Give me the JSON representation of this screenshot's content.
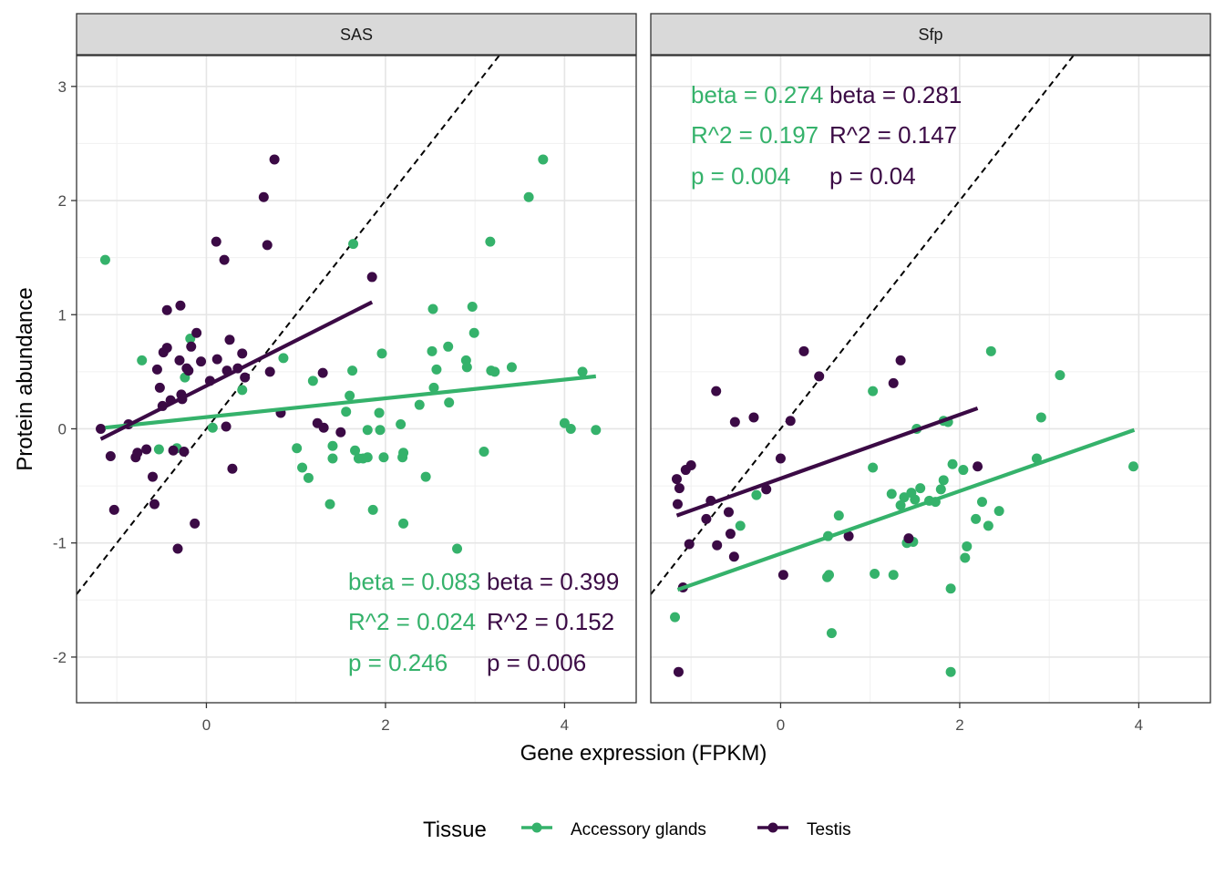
{
  "chart_data": {
    "type": "scatter",
    "xlabel": "Gene expression (FPKM)",
    "ylabel": "Protein abundance",
    "xlim": [
      -1.45,
      4.8
    ],
    "ylim": [
      -2.4,
      3.27
    ],
    "x_ticks": [
      0,
      2,
      4
    ],
    "y_ticks": [
      -2,
      -1,
      0,
      1,
      2,
      3
    ],
    "x_tick_labels": [
      "0",
      "2",
      "4"
    ],
    "y_tick_labels": [
      "-2",
      "-1",
      "0",
      "1",
      "2",
      "3"
    ],
    "grid": true,
    "identity_line": true,
    "legend": {
      "title": "Tissue",
      "position": "bottom",
      "entries": [
        {
          "label": "Accessory glands",
          "color": "#35b26b"
        },
        {
          "label": "Testis",
          "color": "#3b0a45"
        }
      ]
    },
    "colors": {
      "Accessory glands": "#35b26b",
      "Testis": "#3b0a45"
    },
    "panels": [
      {
        "title": "SAS",
        "series": [
          {
            "name": "Accessory glands",
            "color": "#35b26b",
            "points": [
              [
                -1.13,
                1.48
              ],
              [
                -0.72,
                0.6
              ],
              [
                -0.53,
                -0.18
              ],
              [
                -0.33,
                -0.17
              ],
              [
                -0.24,
                0.45
              ],
              [
                -0.18,
                0.79
              ],
              [
                0.07,
                0.01
              ],
              [
                0.4,
                0.34
              ],
              [
                0.86,
                0.62
              ],
              [
                1.01,
                -0.17
              ],
              [
                1.07,
                -0.34
              ],
              [
                1.14,
                -0.43
              ],
              [
                1.19,
                0.42
              ],
              [
                1.38,
                -0.66
              ],
              [
                1.41,
                -0.15
              ],
              [
                1.41,
                -0.26
              ],
              [
                1.56,
                0.15
              ],
              [
                1.6,
                0.29
              ],
              [
                1.63,
                0.51
              ],
              [
                1.64,
                1.62
              ],
              [
                1.66,
                -0.19
              ],
              [
                1.7,
                -0.26
              ],
              [
                1.75,
                -0.26
              ],
              [
                1.8,
                -0.25
              ],
              [
                1.8,
                -0.01
              ],
              [
                1.86,
                -0.71
              ],
              [
                1.93,
                0.14
              ],
              [
                1.94,
                -0.01
              ],
              [
                1.96,
                0.66
              ],
              [
                1.98,
                -0.25
              ],
              [
                2.17,
                0.04
              ],
              [
                2.19,
                -0.25
              ],
              [
                2.2,
                -0.83
              ],
              [
                2.2,
                -0.21
              ],
              [
                2.38,
                0.21
              ],
              [
                2.45,
                -0.42
              ],
              [
                2.52,
                0.68
              ],
              [
                2.53,
                1.05
              ],
              [
                2.54,
                0.36
              ],
              [
                2.57,
                0.52
              ],
              [
                2.7,
                0.72
              ],
              [
                2.71,
                0.23
              ],
              [
                2.8,
                -1.05
              ],
              [
                2.9,
                0.6
              ],
              [
                2.91,
                0.54
              ],
              [
                2.97,
                1.07
              ],
              [
                2.99,
                0.84
              ],
              [
                3.1,
                -0.2
              ],
              [
                3.17,
                1.64
              ],
              [
                3.18,
                0.51
              ],
              [
                3.22,
                0.5
              ],
              [
                3.41,
                0.54
              ],
              [
                3.6,
                2.03
              ],
              [
                3.76,
                2.36
              ],
              [
                4.2,
                0.5
              ],
              [
                4.0,
                0.05
              ],
              [
                4.07,
                0.0
              ],
              [
                4.35,
                -0.01
              ]
            ],
            "fit": {
              "x": [
                -1.13,
                4.35
              ],
              "y": [
                0.01,
                0.46
              ]
            }
          },
          {
            "name": "Testis",
            "color": "#3b0a45",
            "points": [
              [
                -1.18,
                0.0
              ],
              [
                -1.07,
                -0.24
              ],
              [
                -1.03,
                -0.71
              ],
              [
                -0.87,
                0.04
              ],
              [
                -0.79,
                -0.25
              ],
              [
                -0.77,
                -0.21
              ],
              [
                -0.67,
                -0.18
              ],
              [
                -0.6,
                -0.42
              ],
              [
                -0.58,
                -0.66
              ],
              [
                -0.55,
                0.52
              ],
              [
                -0.52,
                0.36
              ],
              [
                -0.49,
                0.2
              ],
              [
                -0.48,
                0.67
              ],
              [
                -0.44,
                0.71
              ],
              [
                -0.44,
                1.04
              ],
              [
                -0.4,
                0.25
              ],
              [
                -0.37,
                -0.19
              ],
              [
                -0.32,
                -1.05
              ],
              [
                -0.3,
                0.6
              ],
              [
                -0.29,
                1.08
              ],
              [
                -0.28,
                0.3
              ],
              [
                -0.27,
                0.26
              ],
              [
                -0.25,
                -0.2
              ],
              [
                -0.22,
                0.53
              ],
              [
                -0.2,
                0.51
              ],
              [
                -0.17,
                0.72
              ],
              [
                -0.13,
                -0.83
              ],
              [
                -0.11,
                0.84
              ],
              [
                -0.06,
                0.59
              ],
              [
                0.04,
                0.42
              ],
              [
                0.11,
                1.64
              ],
              [
                0.12,
                0.61
              ],
              [
                0.2,
                1.48
              ],
              [
                0.22,
                0.02
              ],
              [
                0.23,
                0.51
              ],
              [
                0.26,
                0.78
              ],
              [
                0.29,
                -0.35
              ],
              [
                0.35,
                0.53
              ],
              [
                0.4,
                0.66
              ],
              [
                0.43,
                0.45
              ],
              [
                0.64,
                2.03
              ],
              [
                0.68,
                1.61
              ],
              [
                0.71,
                0.5
              ],
              [
                0.76,
                2.36
              ],
              [
                0.83,
                0.14
              ],
              [
                1.24,
                0.05
              ],
              [
                1.3,
                0.49
              ],
              [
                1.31,
                0.01
              ],
              [
                1.5,
                -0.03
              ],
              [
                1.85,
                1.33
              ]
            ],
            "fit": {
              "x": [
                -1.18,
                1.85
              ],
              "y": [
                -0.09,
                1.11
              ]
            }
          }
        ],
        "annotations": [
          {
            "series": "Accessory glands",
            "beta": "beta = 0.083",
            "r2": "R^2 = 0.024",
            "p": "p = 0.246"
          },
          {
            "series": "Testis",
            "beta": "beta = 0.399",
            "r2": "R^2 = 0.152",
            "p": "p = 0.006"
          }
        ]
      },
      {
        "title": "Sfp",
        "series": [
          {
            "name": "Accessory glands",
            "color": "#35b26b",
            "points": [
              [
                -1.18,
                -1.65
              ],
              [
                -0.27,
                -0.58
              ],
              [
                -0.45,
                -0.85
              ],
              [
                0.52,
                -1.3
              ],
              [
                0.53,
                -0.94
              ],
              [
                0.54,
                -1.28
              ],
              [
                0.57,
                -1.79
              ],
              [
                0.65,
                -0.76
              ],
              [
                1.03,
                0.33
              ],
              [
                1.03,
                -0.34
              ],
              [
                1.05,
                -1.27
              ],
              [
                1.24,
                -0.57
              ],
              [
                1.26,
                -1.28
              ],
              [
                1.34,
                -0.67
              ],
              [
                1.38,
                -0.6
              ],
              [
                1.41,
                -1.0
              ],
              [
                1.46,
                -0.56
              ],
              [
                1.48,
                -0.99
              ],
              [
                1.5,
                -0.62
              ],
              [
                1.52,
                0.0
              ],
              [
                1.56,
                -0.52
              ],
              [
                1.66,
                -0.63
              ],
              [
                1.73,
                -0.64
              ],
              [
                1.79,
                -0.53
              ],
              [
                1.82,
                0.07
              ],
              [
                1.82,
                -0.45
              ],
              [
                1.87,
                0.06
              ],
              [
                1.9,
                -1.4
              ],
              [
                1.92,
                -0.31
              ],
              [
                2.04,
                -0.36
              ],
              [
                2.06,
                -1.13
              ],
              [
                2.08,
                -1.03
              ],
              [
                2.18,
                -0.79
              ],
              [
                2.25,
                -0.64
              ],
              [
                2.32,
                -0.85
              ],
              [
                2.35,
                0.68
              ],
              [
                2.44,
                -0.72
              ],
              [
                2.86,
                -0.26
              ],
              [
                2.91,
                0.1
              ],
              [
                3.12,
                0.47
              ],
              [
                3.94,
                -0.33
              ],
              [
                1.9,
                -2.13
              ]
            ],
            "fit": {
              "x": [
                -1.15,
                3.95
              ],
              "y": [
                -1.41,
                -0.01
              ]
            }
          },
          {
            "name": "Testis",
            "color": "#3b0a45",
            "points": [
              [
                -1.16,
                -0.44
              ],
              [
                -1.15,
                -0.66
              ],
              [
                -1.14,
                -2.13
              ],
              [
                -1.13,
                -0.52
              ],
              [
                -1.09,
                -1.39
              ],
              [
                -1.06,
                -0.36
              ],
              [
                -1.02,
                -1.01
              ],
              [
                -1.0,
                -0.32
              ],
              [
                -0.83,
                -0.79
              ],
              [
                -0.78,
                -0.63
              ],
              [
                -0.72,
                0.33
              ],
              [
                -0.71,
                -1.02
              ],
              [
                -0.58,
                -0.73
              ],
              [
                -0.56,
                -0.92
              ],
              [
                -0.52,
                -1.12
              ],
              [
                -0.51,
                0.06
              ],
              [
                -0.3,
                0.1
              ],
              [
                -0.16,
                -0.53
              ],
              [
                0.0,
                -0.26
              ],
              [
                0.03,
                -1.28
              ],
              [
                0.11,
                0.07
              ],
              [
                0.26,
                0.68
              ],
              [
                0.43,
                0.46
              ],
              [
                0.76,
                -0.94
              ],
              [
                1.26,
                0.4
              ],
              [
                1.34,
                0.6
              ],
              [
                1.43,
                -0.96
              ],
              [
                2.2,
                -0.33
              ]
            ],
            "fit": {
              "x": [
                -1.16,
                2.2
              ],
              "y": [
                -0.76,
                0.18
              ]
            }
          }
        ],
        "annotations": [
          {
            "series": "Accessory glands",
            "beta": "beta = 0.274",
            "r2": "R^2 = 0.197",
            "p": "p = 0.004"
          },
          {
            "series": "Testis",
            "beta": "beta = 0.281",
            "r2": "R^2 = 0.147",
            "p": "p = 0.04"
          }
        ]
      }
    ]
  }
}
